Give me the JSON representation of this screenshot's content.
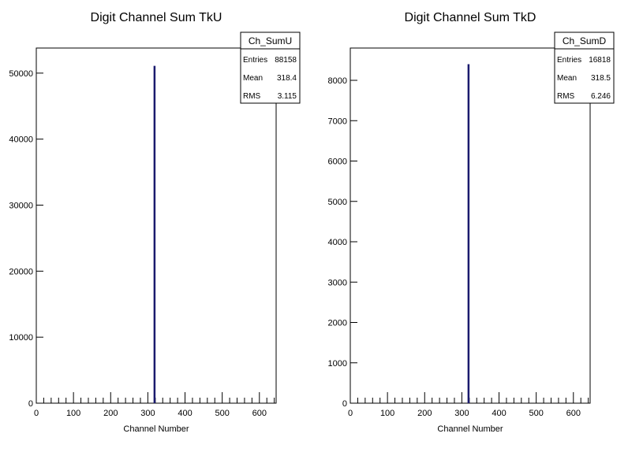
{
  "chart_data": [
    {
      "type": "bar",
      "title": "Digit Channel Sum TkU",
      "xlabel": "Channel Number",
      "ylabel": "",
      "xlim": [
        0,
        645
      ],
      "ylim": [
        0,
        53800
      ],
      "xticks": [
        0,
        100,
        200,
        300,
        400,
        500,
        600
      ],
      "yticks": [
        0,
        10000,
        20000,
        30000,
        40000,
        50000
      ],
      "xticks_minor_step": 20,
      "xticks_medium_step": 100,
      "bins": [
        {
          "x": 318,
          "value": 51100
        }
      ],
      "line_color": "#1a1a6e",
      "stats": {
        "name": "Ch_SumU",
        "rows": [
          {
            "label": "Entries",
            "value": "88158"
          },
          {
            "label": "Mean",
            "value": "318.4"
          },
          {
            "label": "RMS",
            "value": "3.115"
          }
        ]
      }
    },
    {
      "type": "bar",
      "title": "Digit Channel Sum TkD",
      "xlabel": "Channel Number",
      "ylabel": "",
      "xlim": [
        0,
        645
      ],
      "ylim": [
        0,
        8800
      ],
      "xticks": [
        0,
        100,
        200,
        300,
        400,
        500,
        600
      ],
      "yticks": [
        0,
        1000,
        2000,
        3000,
        4000,
        5000,
        6000,
        7000,
        8000
      ],
      "xticks_minor_step": 20,
      "xticks_medium_step": 100,
      "bins": [
        {
          "x": 318,
          "value": 8400
        }
      ],
      "line_color": "#1a1a6e",
      "stats": {
        "name": "Ch_SumD",
        "rows": [
          {
            "label": "Entries",
            "value": "16818"
          },
          {
            "label": "Mean",
            "value": "318.5"
          },
          {
            "label": "RMS",
            "value": "6.246"
          }
        ]
      }
    }
  ]
}
